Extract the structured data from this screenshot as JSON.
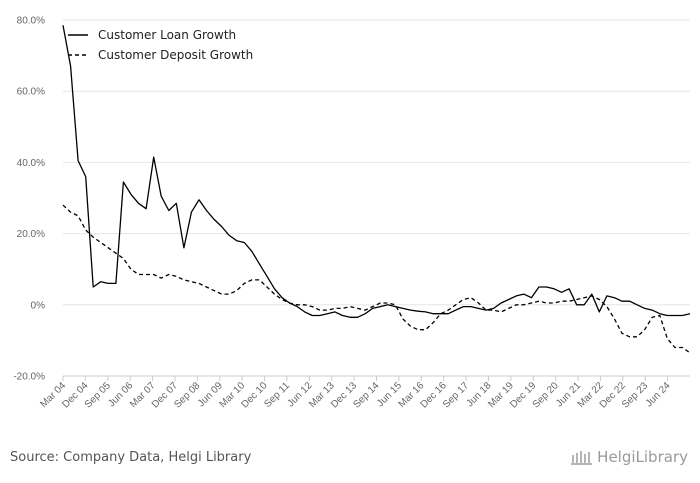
{
  "chart_data": {
    "type": "line",
    "title": "",
    "xlabel": "",
    "ylabel": "",
    "ylim": [
      -20,
      80
    ],
    "y_ticks": [
      -20,
      0,
      20,
      40,
      60,
      80
    ],
    "y_tick_labels": [
      "-20.0%",
      "0%",
      "20.0%",
      "40.0%",
      "60.0%",
      "80.0%"
    ],
    "x_tick_labels": [
      "Mar 04",
      "Dec 04",
      "Sep 05",
      "Jun 06",
      "Mar 07",
      "Dec 07",
      "Sep 08",
      "Jun 09",
      "Mar 10",
      "Dec 10",
      "Sep 11",
      "Jun 12",
      "Mar 13",
      "Dec 13",
      "Sep 14",
      "Jun 15",
      "Mar 16",
      "Dec 16",
      "Sep 17",
      "Jun 18",
      "Mar 19",
      "Dec 19",
      "Sep 20",
      "Jun 21",
      "Mar 22",
      "Dec 22",
      "Sep 23",
      "Jun 24"
    ],
    "legend_position": "top-left",
    "series": [
      {
        "name": "Customer Loan Growth",
        "style": "solid",
        "color": "#000000",
        "values": [
          78.5,
          67,
          40.5,
          36,
          5,
          6.5,
          6,
          6,
          34.5,
          31,
          28.5,
          27,
          41.5,
          30.5,
          26.5,
          28.5,
          16,
          26,
          29.5,
          26.5,
          24,
          22,
          19.5,
          18,
          17.5,
          15,
          11.5,
          8,
          4.5,
          2,
          0.5,
          -0.5,
          -2,
          -3,
          -3,
          -2.5,
          -2,
          -3,
          -3.5,
          -3.5,
          -2.5,
          -1,
          -0.5,
          0,
          -0.5,
          -1,
          -1.5,
          -1.8,
          -2,
          -2.5,
          -2.5,
          -2.5,
          -1.5,
          -0.5,
          -0.5,
          -1,
          -1.5,
          -1,
          0.5,
          1.5,
          2.5,
          3,
          2,
          5,
          5,
          4.5,
          3.5,
          4.5,
          0,
          0,
          3,
          -2,
          2.5,
          2,
          1,
          1,
          0,
          -1,
          -1.5,
          -2.5,
          -3,
          -3,
          -3,
          -2.5
        ]
      },
      {
        "name": "Customer Deposit Growth",
        "style": "dashed",
        "color": "#000000",
        "values": [
          28,
          26,
          25,
          21,
          19,
          17.5,
          16,
          14.5,
          13,
          10,
          8.5,
          8.5,
          8.5,
          7.5,
          8.5,
          8,
          7,
          6.5,
          6,
          5,
          4,
          3,
          3,
          4,
          6,
          7,
          7,
          5,
          3,
          1.5,
          0.5,
          0,
          0,
          -0.5,
          -1.5,
          -1.5,
          -1,
          -1,
          -0.5,
          -1,
          -1.5,
          -0.5,
          0.5,
          0.5,
          0,
          -4,
          -6,
          -7,
          -7,
          -5,
          -2.5,
          -1.5,
          0,
          1.5,
          2,
          0.5,
          -1.5,
          -1.5,
          -2,
          -1,
          0,
          0,
          0.5,
          1,
          0.5,
          0.5,
          1,
          1,
          1.5,
          2,
          2.5,
          1.5,
          -0.5,
          -4,
          -8,
          -9,
          -9,
          -7,
          -3.5,
          -3,
          -9.5,
          -12,
          -12,
          -13.5
        ]
      }
    ]
  },
  "footer": {
    "source": "Source: Company Data, Helgi Library",
    "brand": "HelgiLibrary"
  }
}
